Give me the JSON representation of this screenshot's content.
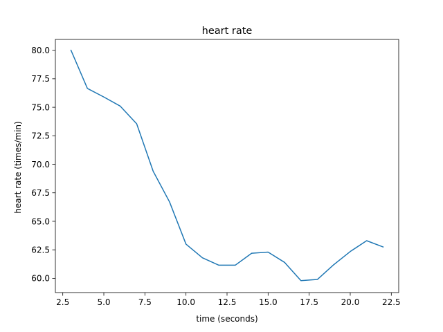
{
  "chart_data": {
    "type": "line",
    "title": "heart rate",
    "xlabel": "time (seconds)",
    "ylabel": "heart rate (times/min)",
    "xlim": [
      2.05,
      22.95
    ],
    "ylim": [
      58.75,
      80.95
    ],
    "x_ticks": [
      2.5,
      5.0,
      7.5,
      10.0,
      12.5,
      15.0,
      17.5,
      20.0,
      22.5
    ],
    "x_tick_labels": [
      "2.5",
      "5.0",
      "7.5",
      "10.0",
      "12.5",
      "15.0",
      "17.5",
      "20.0",
      "22.5"
    ],
    "y_ticks": [
      60.0,
      62.5,
      65.0,
      67.5,
      70.0,
      72.5,
      75.0,
      77.5,
      80.0
    ],
    "y_tick_labels": [
      "60.0",
      "62.5",
      "65.0",
      "67.5",
      "70.0",
      "72.5",
      "75.0",
      "77.5",
      "80.0"
    ],
    "grid": false,
    "legend": "none",
    "series": [
      {
        "color": "#1f77b4",
        "x": [
          3,
          4,
          5,
          6,
          7,
          8,
          9,
          10,
          11,
          12,
          13,
          14,
          15,
          16,
          17,
          18,
          19,
          20,
          21,
          22
        ],
        "y": [
          80.0,
          76.65,
          75.9,
          75.1,
          73.55,
          69.4,
          66.7,
          63.0,
          61.8,
          61.15,
          61.15,
          62.2,
          62.3,
          61.4,
          59.8,
          59.9,
          61.2,
          62.35,
          63.3,
          62.75
        ]
      }
    ]
  }
}
